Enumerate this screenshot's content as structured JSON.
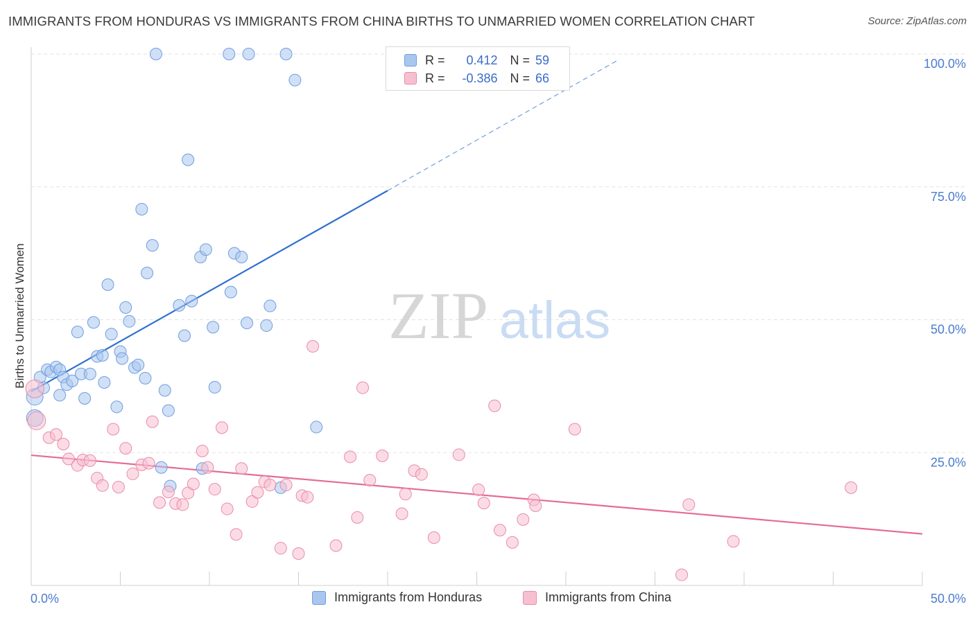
{
  "title": "IMMIGRANTS FROM HONDURAS VS IMMIGRANTS FROM CHINA BIRTHS TO UNMARRIED WOMEN CORRELATION CHART",
  "source": "Source: ZipAtlas.com",
  "watermark": {
    "zip": "ZIP",
    "atlas": "atlas"
  },
  "legend_stats": [
    {
      "r_label": "R =",
      "r_value": "0.412",
      "n_label": "N =",
      "n_value": "59",
      "color": "#a9c6ef",
      "border": "#6f9de0"
    },
    {
      "r_label": "R =",
      "r_value": "-0.386",
      "n_label": "N =",
      "n_value": "66",
      "color": "#f7c0d0",
      "border": "#e98bab"
    }
  ],
  "bottom_legend": [
    {
      "label": "Immigrants from Honduras",
      "color": "#a9c6ef",
      "border": "#6f9de0"
    },
    {
      "label": "Immigrants from China",
      "color": "#f7c0d0",
      "border": "#e98bab"
    }
  ],
  "chart_data": {
    "type": "scatter",
    "xlabel": "",
    "ylabel": "Births to Unmarried Women",
    "xlim": [
      0,
      50
    ],
    "ylim": [
      0,
      100
    ],
    "x_tick_labels": {
      "min": "0.0%",
      "max": "50.0%"
    },
    "y_ticks": [
      25,
      50,
      75,
      100
    ],
    "y_tick_labels": [
      "25.0%",
      "50.0%",
      "75.0%",
      "100.0%"
    ],
    "grid": true,
    "legend_position": "top-center",
    "series": [
      {
        "name": "Immigrants from Honduras",
        "color": "#6f9de0",
        "fill": "#a9c6ef",
        "trend": {
          "x0": 0,
          "y0": 36.5,
          "x1": 20,
          "y1": 74.3,
          "dash_x1": 33,
          "dash_y1": 99
        },
        "points": [
          [
            0.2,
            35.5
          ],
          [
            0.2,
            31.5
          ],
          [
            0.5,
            39.2
          ],
          [
            0.7,
            37.2
          ],
          [
            0.9,
            40.6
          ],
          [
            1.1,
            40.2
          ],
          [
            1.4,
            41.1
          ],
          [
            1.6,
            40.6
          ],
          [
            1.6,
            35.8
          ],
          [
            1.8,
            39.2
          ],
          [
            2.0,
            37.8
          ],
          [
            2.3,
            38.5
          ],
          [
            2.6,
            47.7
          ],
          [
            2.8,
            39.8
          ],
          [
            3.0,
            35.2
          ],
          [
            3.3,
            39.8
          ],
          [
            3.5,
            49.5
          ],
          [
            3.7,
            43.1
          ],
          [
            4.0,
            43.3
          ],
          [
            4.1,
            38.2
          ],
          [
            4.3,
            56.6
          ],
          [
            4.5,
            47.3
          ],
          [
            4.8,
            33.6
          ],
          [
            5.0,
            44.0
          ],
          [
            5.1,
            42.7
          ],
          [
            5.3,
            52.3
          ],
          [
            5.5,
            49.7
          ],
          [
            5.8,
            41.0
          ],
          [
            6.0,
            41.5
          ],
          [
            6.2,
            70.8
          ],
          [
            6.4,
            39.0
          ],
          [
            6.5,
            58.8
          ],
          [
            6.8,
            64.0
          ],
          [
            7.0,
            100.0
          ],
          [
            7.3,
            22.2
          ],
          [
            7.5,
            36.7
          ],
          [
            7.7,
            32.9
          ],
          [
            7.8,
            18.7
          ],
          [
            8.3,
            52.7
          ],
          [
            8.6,
            47.0
          ],
          [
            8.8,
            80.1
          ],
          [
            9.0,
            53.5
          ],
          [
            9.5,
            61.8
          ],
          [
            9.6,
            22.0
          ],
          [
            9.8,
            63.2
          ],
          [
            10.2,
            48.6
          ],
          [
            10.3,
            37.3
          ],
          [
            11.1,
            100.0
          ],
          [
            11.2,
            55.2
          ],
          [
            11.4,
            62.5
          ],
          [
            11.8,
            61.8
          ],
          [
            12.1,
            49.4
          ],
          [
            12.2,
            100.0
          ],
          [
            13.2,
            48.9
          ],
          [
            13.4,
            52.6
          ],
          [
            14.0,
            18.4
          ],
          [
            14.3,
            100.0
          ],
          [
            14.8,
            95.1
          ],
          [
            16.0,
            29.8
          ]
        ]
      },
      {
        "name": "Immigrants from China",
        "color": "#e98bab",
        "fill": "#f7c0d0",
        "trend": {
          "x0": 0,
          "y0": 24.5,
          "x1": 50,
          "y1": 9.7
        },
        "points": [
          [
            0.2,
            37.0
          ],
          [
            0.3,
            31.0
          ],
          [
            1.0,
            27.8
          ],
          [
            1.4,
            28.4
          ],
          [
            1.8,
            26.6
          ],
          [
            2.1,
            23.8
          ],
          [
            2.6,
            22.6
          ],
          [
            2.9,
            23.6
          ],
          [
            3.3,
            23.5
          ],
          [
            3.7,
            20.2
          ],
          [
            4.0,
            18.8
          ],
          [
            4.6,
            29.4
          ],
          [
            4.9,
            18.5
          ],
          [
            5.3,
            25.8
          ],
          [
            5.7,
            21.0
          ],
          [
            6.2,
            22.7
          ],
          [
            6.6,
            23.0
          ],
          [
            6.8,
            30.8
          ],
          [
            7.2,
            15.6
          ],
          [
            7.7,
            17.6
          ],
          [
            8.1,
            15.4
          ],
          [
            8.5,
            15.2
          ],
          [
            8.8,
            17.4
          ],
          [
            9.1,
            19.1
          ],
          [
            9.6,
            25.3
          ],
          [
            9.9,
            22.2
          ],
          [
            10.3,
            18.1
          ],
          [
            10.7,
            29.7
          ],
          [
            11.0,
            14.4
          ],
          [
            11.5,
            9.6
          ],
          [
            11.8,
            22.0
          ],
          [
            12.4,
            15.8
          ],
          [
            12.7,
            17.5
          ],
          [
            13.1,
            19.5
          ],
          [
            13.4,
            18.9
          ],
          [
            14.0,
            7.0
          ],
          [
            14.3,
            18.9
          ],
          [
            15.0,
            6.0
          ],
          [
            15.2,
            16.9
          ],
          [
            15.5,
            16.6
          ],
          [
            15.8,
            45.0
          ],
          [
            17.1,
            7.5
          ],
          [
            17.9,
            24.2
          ],
          [
            18.3,
            12.8
          ],
          [
            18.6,
            37.2
          ],
          [
            19.0,
            19.8
          ],
          [
            19.7,
            24.4
          ],
          [
            20.8,
            13.5
          ],
          [
            21.0,
            17.2
          ],
          [
            21.5,
            21.6
          ],
          [
            21.9,
            20.9
          ],
          [
            22.6,
            9.0
          ],
          [
            24.0,
            24.6
          ],
          [
            25.1,
            18.0
          ],
          [
            25.4,
            15.5
          ],
          [
            26.0,
            33.8
          ],
          [
            26.3,
            10.4
          ],
          [
            27.0,
            8.1
          ],
          [
            27.6,
            12.4
          ],
          [
            28.2,
            16.1
          ],
          [
            28.3,
            15.0
          ],
          [
            30.5,
            29.4
          ],
          [
            36.5,
            2.0
          ],
          [
            36.9,
            15.2
          ],
          [
            39.4,
            8.3
          ],
          [
            46.0,
            18.4
          ]
        ]
      }
    ]
  }
}
